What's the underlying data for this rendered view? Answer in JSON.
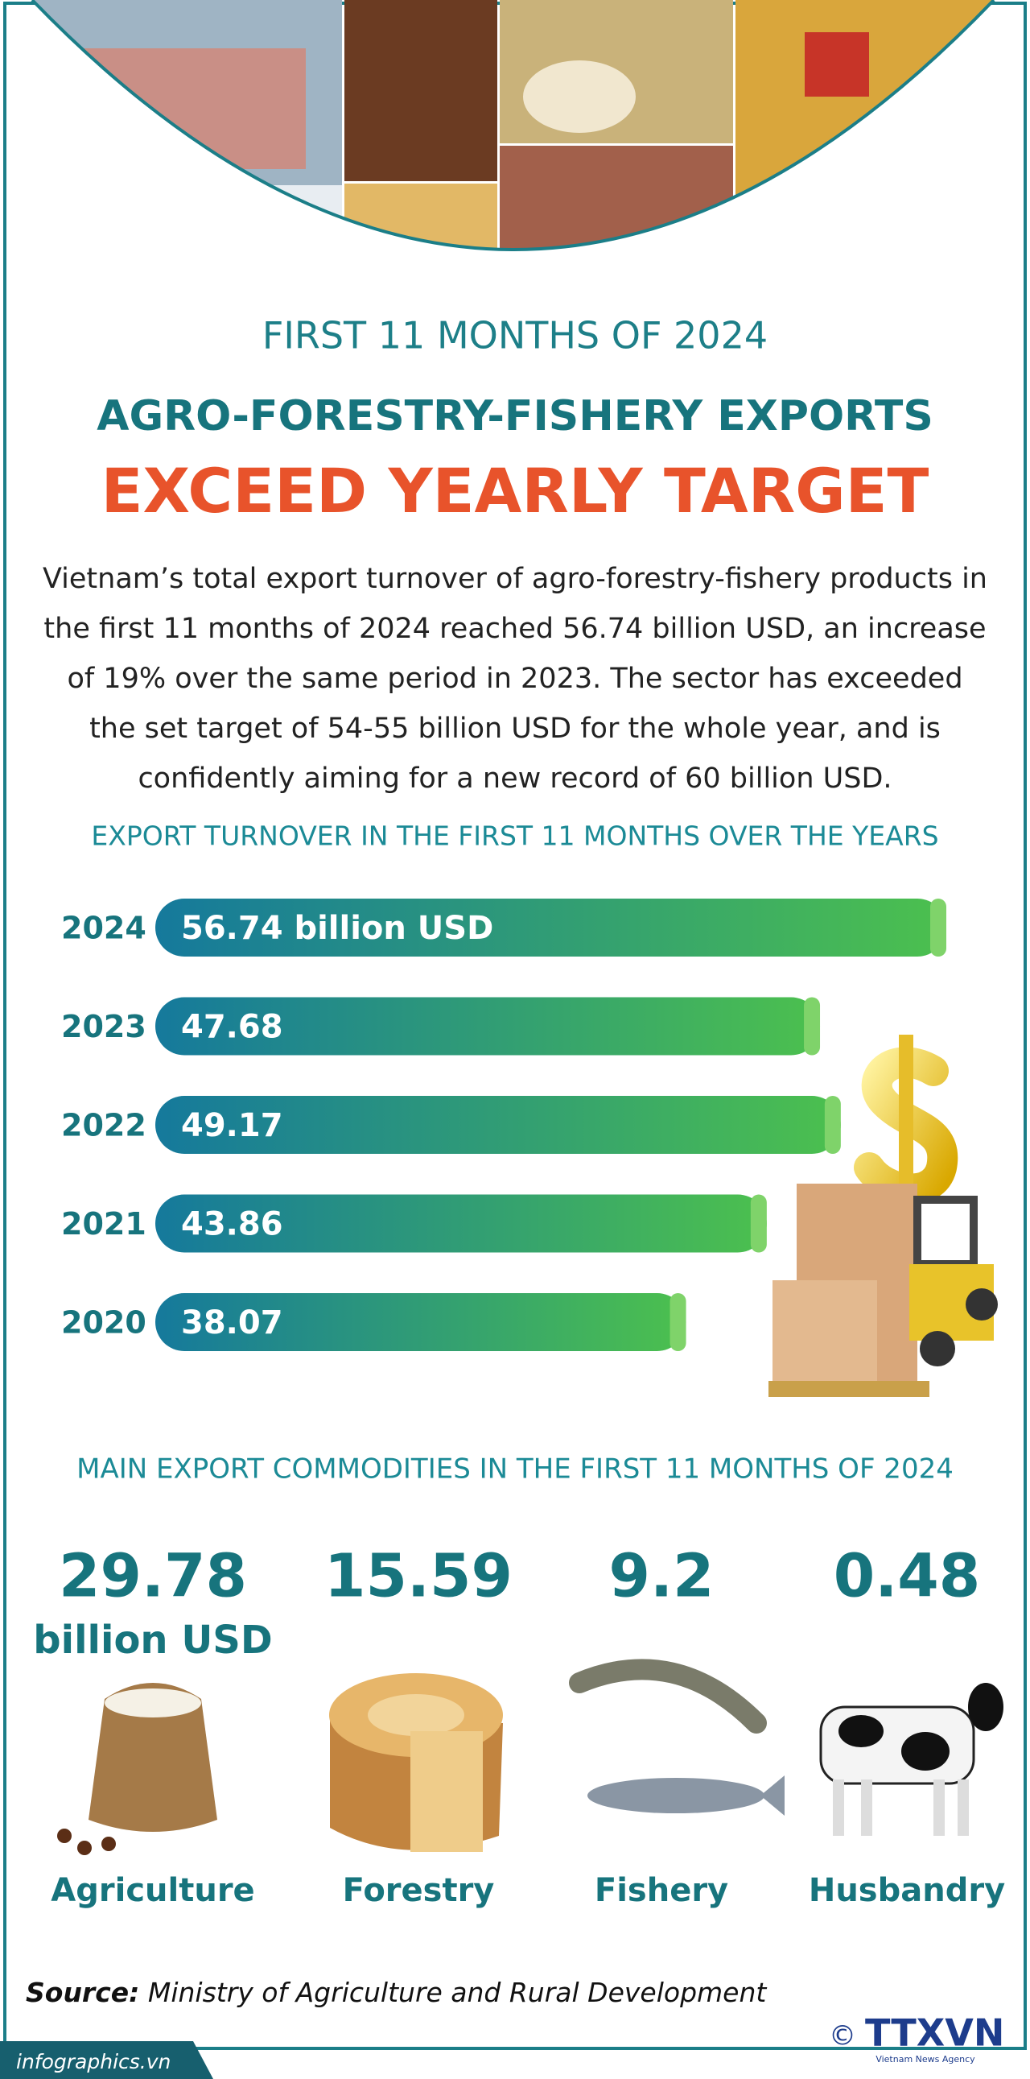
{
  "header": {
    "subtitle": "FIRST 11 MONTHS OF 2024",
    "title": "AGRO-FORESTRY-FISHERY EXPORTS",
    "headline": "EXCEED YEARLY TARGET"
  },
  "intro": "Vietnam’s total export turnover of agro-forestry-fishery products in the first 11 months of 2024 reached 56.74 billion USD, an increase of 19% over the same period in 2023. The sector has exceeded the set target of 54-55 billion USD for the whole year, and is confidently aiming for a new record of 60 billion USD.",
  "chart_data": {
    "type": "bar",
    "orientation": "horizontal",
    "title": "EXPORT TURNOVER IN THE FIRST 11 MONTHS OVER THE YEARS",
    "categories": [
      "2024",
      "2023",
      "2022",
      "2021",
      "2020"
    ],
    "values": [
      56.74,
      47.68,
      49.17,
      43.86,
      38.07
    ],
    "value_labels": [
      "56.74 billion USD",
      "47.68",
      "49.17",
      "43.86",
      "38.07"
    ],
    "colors": [
      "#15799c",
      "#4cc04e"
    ]
  },
  "commodities": {
    "title": "MAIN EXPORT COMMODITIES IN THE FIRST 11 MONTHS OF 2024",
    "unit": "billion USD",
    "items": [
      {
        "value": 29.78,
        "name": "Agriculture"
      },
      {
        "value": 15.59,
        "name": "Forestry"
      },
      {
        "value": 9.2,
        "name": "Fishery"
      },
      {
        "value": 0.48,
        "name": "Husbandry"
      }
    ]
  },
  "source": {
    "label": "Source:",
    "text": "Ministry of Agriculture and Rural Development"
  },
  "footer": {
    "site": "infographics.vn",
    "copyright": "©",
    "logo": "TTXVN",
    "agency": "Vietnam News Agency"
  }
}
